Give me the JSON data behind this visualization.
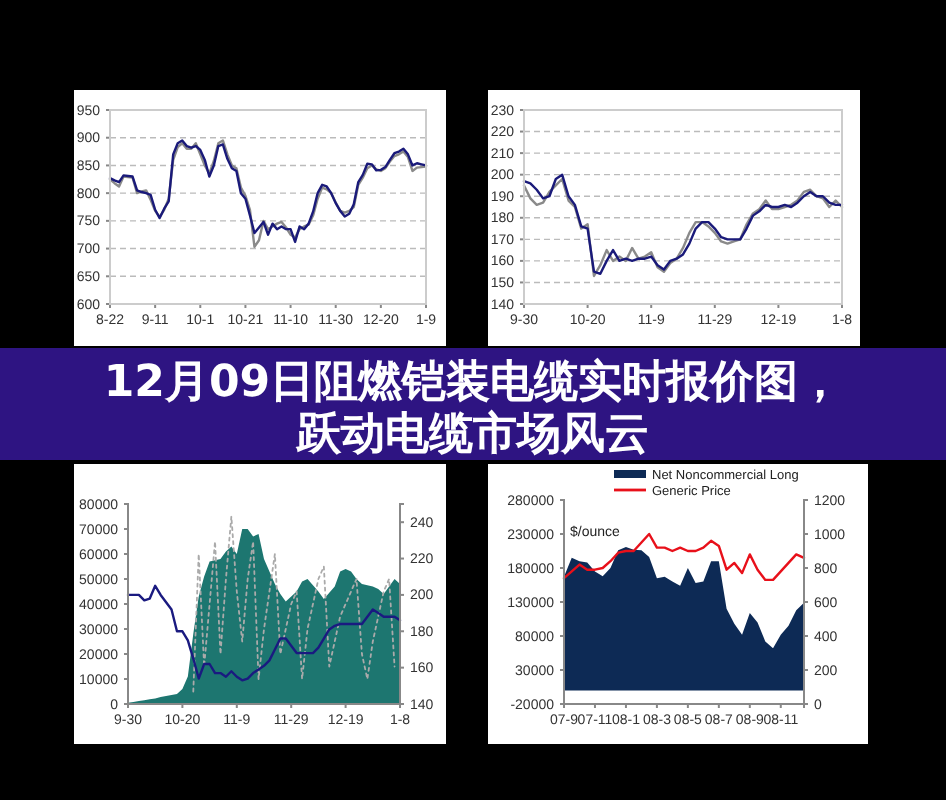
{
  "chart_data": [
    {
      "type": "line",
      "categories": [
        "8-22",
        null,
        null,
        null,
        null,
        null,
        null,
        null,
        null,
        null,
        "9-11",
        null,
        null,
        null,
        null,
        null,
        null,
        null,
        null,
        null,
        "10-1",
        null,
        null,
        null,
        null,
        null,
        null,
        null,
        null,
        null,
        "10-21",
        null,
        null,
        null,
        null,
        null,
        null,
        null,
        null,
        null,
        "11-10",
        null,
        null,
        null,
        null,
        null,
        null,
        null,
        null,
        null,
        "11-30",
        null,
        null,
        null,
        null,
        null,
        null,
        null,
        null,
        null,
        "12-20",
        null,
        null,
        null,
        null,
        null,
        null,
        null,
        null,
        null,
        "1-9"
      ],
      "ylim": [
        600,
        950
      ],
      "yticks": [
        600,
        650,
        700,
        750,
        800,
        850,
        900,
        950
      ],
      "grid": "y",
      "series": [
        {
          "color": "#8a8a8a",
          "values": [
            825,
            818,
            812,
            830,
            829,
            828,
            800,
            803,
            805,
            788,
            768,
            757,
            770,
            790,
            860,
            883,
            890,
            880,
            880,
            890,
            870,
            850,
            835,
            858,
            890,
            895,
            870,
            850,
            845,
            810,
            795,
            770,
            703,
            715,
            750,
            735,
            740,
            745,
            748,
            738,
            725,
            720,
            735,
            740,
            743,
            760,
            790,
            810,
            807,
            800,
            783,
            768,
            765,
            768,
            775,
            815,
            828,
            845,
            850,
            843,
            840,
            845,
            857,
            867,
            870,
            875,
            865,
            840,
            846,
            847,
            848
          ]
        },
        {
          "color": "#1a1a7a",
          "values": [
            827,
            823,
            820,
            832,
            831,
            830,
            805,
            802,
            800,
            797,
            770,
            755,
            772,
            785,
            870,
            890,
            895,
            885,
            882,
            885,
            878,
            860,
            830,
            850,
            885,
            888,
            862,
            845,
            840,
            800,
            790,
            760,
            728,
            738,
            748,
            725,
            745,
            735,
            740,
            735,
            735,
            712,
            740,
            735,
            745,
            767,
            800,
            815,
            812,
            800,
            782,
            768,
            758,
            763,
            780,
            820,
            833,
            853,
            852,
            841,
            842,
            847,
            860,
            872,
            875,
            880,
            870,
            850,
            854,
            852,
            850
          ]
        }
      ]
    },
    {
      "type": "line",
      "categories": [
        "9-30",
        null,
        null,
        null,
        null,
        null,
        null,
        null,
        null,
        null,
        "10-20",
        null,
        null,
        null,
        null,
        null,
        null,
        null,
        null,
        null,
        "11-9",
        null,
        null,
        null,
        null,
        null,
        null,
        null,
        null,
        null,
        "11-29",
        null,
        null,
        null,
        null,
        null,
        null,
        null,
        null,
        null,
        "12-19",
        null,
        null,
        null,
        null,
        null,
        null,
        null,
        null,
        null,
        "1-8"
      ],
      "ylim": [
        140,
        230
      ],
      "yticks": [
        140,
        150,
        160,
        170,
        180,
        190,
        200,
        210,
        220,
        230
      ],
      "grid": "y",
      "series": [
        {
          "color": "#8a8a8a",
          "values": [
            195,
            189,
            186,
            187,
            192,
            195,
            198,
            188,
            185,
            175,
            177,
            153,
            158,
            165,
            160,
            162,
            160,
            166,
            161,
            162,
            164,
            157,
            155,
            159,
            161,
            166,
            173,
            178,
            178,
            176,
            173,
            169,
            168,
            169,
            170,
            177,
            182,
            184,
            188,
            184,
            184,
            185,
            186,
            188,
            192,
            193,
            190,
            189,
            185,
            188,
            185
          ]
        },
        {
          "color": "#1a1a7a",
          "values": [
            197,
            196,
            193,
            189,
            190,
            198,
            200,
            190,
            186,
            176,
            175,
            155,
            154,
            160,
            165,
            160,
            161,
            160,
            161,
            161,
            162,
            158,
            156,
            160,
            161,
            163,
            168,
            175,
            178,
            178,
            175,
            171,
            170,
            170,
            170,
            175,
            181,
            183,
            186,
            185,
            185,
            186,
            185,
            187,
            190,
            192,
            190,
            190,
            187,
            186,
            186
          ]
        }
      ]
    },
    {
      "type": "area",
      "categories": [
        "9-30",
        null,
        null,
        null,
        null,
        null,
        null,
        null,
        null,
        null,
        "10-20",
        null,
        null,
        null,
        null,
        null,
        null,
        null,
        null,
        null,
        "11-9",
        null,
        null,
        null,
        null,
        null,
        null,
        null,
        null,
        null,
        "11-29",
        null,
        null,
        null,
        null,
        null,
        null,
        null,
        null,
        null,
        "12-19",
        null,
        null,
        null,
        null,
        null,
        null,
        null,
        null,
        null,
        "1-8"
      ],
      "ylim": [
        0,
        80000
      ],
      "yticks": [
        0,
        10000,
        20000,
        30000,
        40000,
        50000,
        60000,
        70000,
        80000
      ],
      "y2lim": [
        140,
        250
      ],
      "y2ticks": [
        140,
        160,
        180,
        200,
        220,
        240
      ],
      "series": [
        {
          "color": "#1d7670",
          "values": [
            500,
            800,
            1200,
            1500,
            1900,
            2200,
            2800,
            3200,
            3600,
            4000,
            6000,
            11000,
            28000,
            43000,
            51000,
            57000,
            57500,
            58000,
            61000,
            63000,
            60000,
            70000,
            70000,
            67000,
            68000,
            58000,
            53000,
            48000,
            44000,
            41000,
            43000,
            45000,
            49000,
            50000,
            47500,
            45000,
            42000,
            44500,
            47000,
            53000,
            54000,
            53000,
            50000,
            48000,
            47500,
            47000,
            46000,
            44000,
            47000,
            50000,
            48000
          ]
        },
        {
          "type": "line",
          "color": "#aaaaaa",
          "line_style": "dotted",
          "values": [
            null,
            null,
            null,
            null,
            null,
            null,
            null,
            null,
            null,
            null,
            null,
            null,
            5000,
            60000,
            15000,
            40000,
            65000,
            20000,
            50000,
            75000,
            45000,
            25000,
            50000,
            65000,
            10000,
            30000,
            45000,
            60000,
            20000,
            30000,
            40000,
            45000,
            10000,
            30000,
            40000,
            50000,
            55000,
            15000,
            25000,
            35000,
            40000,
            45000,
            50000,
            20000,
            10000,
            25000,
            35000,
            45000,
            50000,
            15000,
            null
          ]
        },
        {
          "type": "line",
          "axis": "y2",
          "color": "#1a1a80",
          "values": [
            200,
            200,
            200,
            197,
            198,
            205,
            200,
            196,
            192,
            180,
            180,
            175,
            165,
            154,
            162,
            162,
            157,
            157,
            155,
            158,
            155,
            153,
            154,
            157,
            159,
            161,
            164,
            170,
            176,
            176,
            172,
            168,
            168,
            168,
            168,
            171,
            176,
            181,
            183,
            184,
            184,
            184,
            184,
            184,
            188,
            192,
            190,
            188,
            188,
            188,
            186
          ]
        }
      ]
    },
    {
      "type": "area",
      "categories": [
        "07-9",
        null,
        null,
        null,
        "07-11",
        null,
        null,
        null,
        "08-1",
        null,
        null,
        null,
        "08-3",
        null,
        null,
        null,
        "08-5",
        null,
        null,
        null,
        "08-7",
        null,
        null,
        null,
        "08-9",
        null,
        null,
        null,
        "08-11",
        null,
        null,
        null
      ],
      "ylim": [
        -20000,
        280000
      ],
      "yticks": [
        -20000,
        30000,
        80000,
        130000,
        180000,
        230000,
        280000
      ],
      "y2lim": [
        0,
        1200
      ],
      "y2ticks": [
        0,
        200,
        400,
        600,
        800,
        1000,
        1200
      ],
      "legend": "top",
      "annotations": [
        "$/ounce"
      ],
      "series": [
        {
          "name": "Net Noncommercial Long",
          "color": "#0d2a55",
          "values": [
            167000,
            195000,
            190000,
            188000,
            175000,
            168000,
            180000,
            206000,
            211000,
            207000,
            206000,
            196000,
            165000,
            167000,
            160000,
            154000,
            180000,
            158000,
            160000,
            190000,
            190000,
            120000,
            98000,
            82000,
            114000,
            100000,
            72000,
            62000,
            82000,
            95000,
            118000,
            129000
          ]
        },
        {
          "type": "line",
          "axis": "y2",
          "name": "Generic Price",
          "color": "#e8101a",
          "values": [
            740,
            780,
            820,
            790,
            790,
            800,
            840,
            890,
            900,
            900,
            950,
            1000,
            920,
            920,
            900,
            920,
            900,
            900,
            920,
            960,
            930,
            790,
            830,
            770,
            880,
            790,
            730,
            730,
            780,
            830,
            880,
            860
          ]
        }
      ]
    },
    {
      "type": "other",
      "title": "12月09日阻燃铠装电缆实时报价图，跃动电缆市场风云"
    }
  ]
}
